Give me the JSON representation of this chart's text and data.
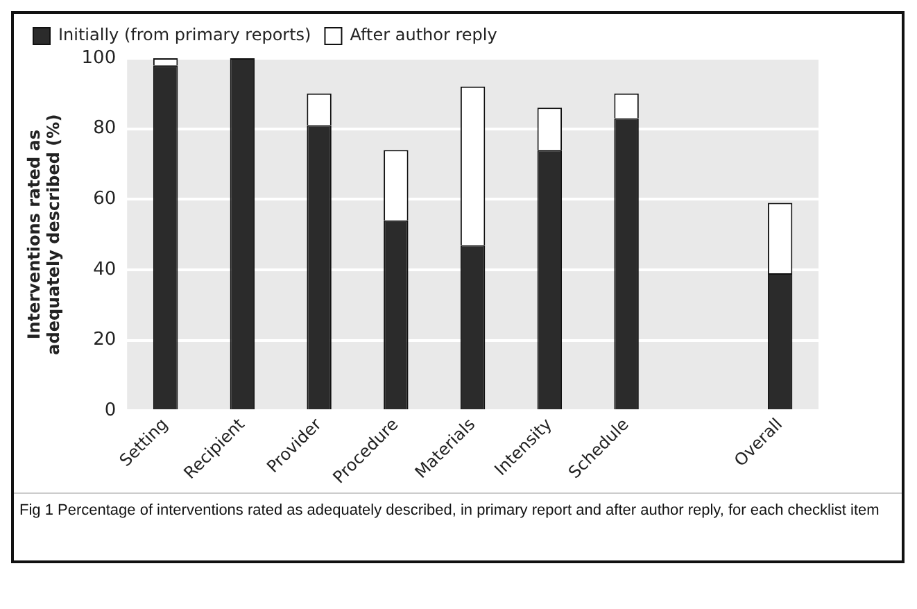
{
  "chart_data": {
    "type": "bar",
    "stacked": true,
    "categories": [
      "Setting",
      "Recipient",
      "Provider",
      "Procedure",
      "Materials",
      "Intensity",
      "Schedule",
      null,
      "Overall"
    ],
    "series": [
      {
        "name": "Initially (from primary reports)",
        "color": "#2b2b2b",
        "values": [
          98,
          100,
          81,
          54,
          47,
          74,
          83,
          null,
          39
        ]
      },
      {
        "name": "After author reply",
        "color": "#ffffff",
        "values": [
          2,
          0,
          9,
          20,
          45,
          12,
          7,
          null,
          20
        ]
      }
    ],
    "ylabel": "Interventions rated as adequately described (%)",
    "ylim": [
      0,
      100
    ],
    "yticks": [
      0,
      20,
      40,
      60,
      80,
      100
    ],
    "grid": "y",
    "legend": "top left",
    "annotations": [
      "Fig 1 Percentage of interventions rated as adequately described, in primary report and after author reply, for each checklist item"
    ]
  }
}
